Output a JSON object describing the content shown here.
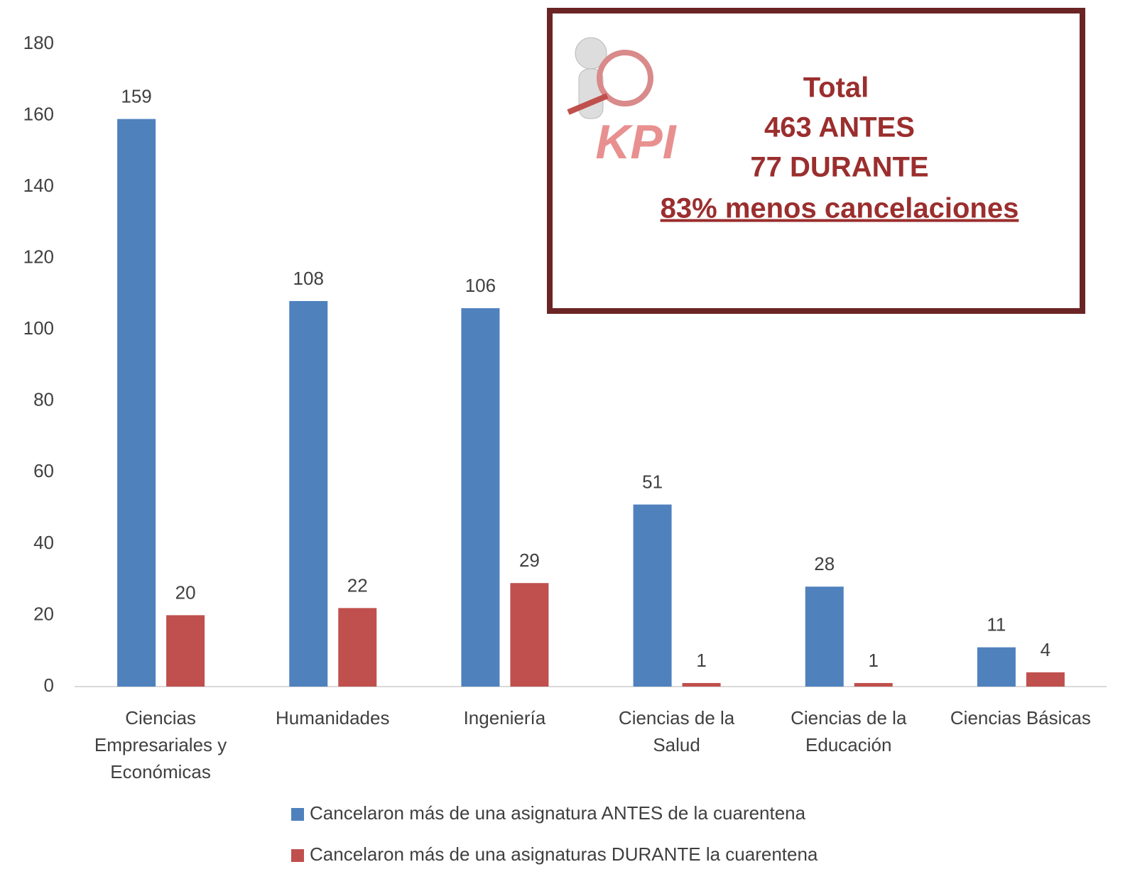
{
  "chart_data": {
    "type": "bar",
    "categories": [
      "Ciencias Empresariales y Económicas",
      "Humanidades",
      "Ingeniería",
      "Ciencias de la Salud",
      "Ciencias de la Educación",
      "Ciencias Básicas"
    ],
    "series": [
      {
        "name": "Cancelaron más de una asignatura ANTES de la cuarentena",
        "color": "#4f81bd",
        "values": [
          159,
          108,
          106,
          51,
          28,
          11
        ]
      },
      {
        "name": "Cancelaron más de una asignaturas DURANTE la cuarentena",
        "color": "#c0504d",
        "values": [
          20,
          22,
          29,
          1,
          1,
          4
        ]
      }
    ],
    "ylim": [
      0,
      180
    ],
    "yticks": [
      0,
      20,
      40,
      60,
      80,
      100,
      120,
      140,
      160,
      180
    ],
    "grid": false,
    "legend": "bottom",
    "annotation": {
      "icon": "KPI",
      "lines": [
        "Total",
        "463 ANTES",
        "77 DURANTE",
        "83% menos cancelaciones"
      ]
    }
  }
}
